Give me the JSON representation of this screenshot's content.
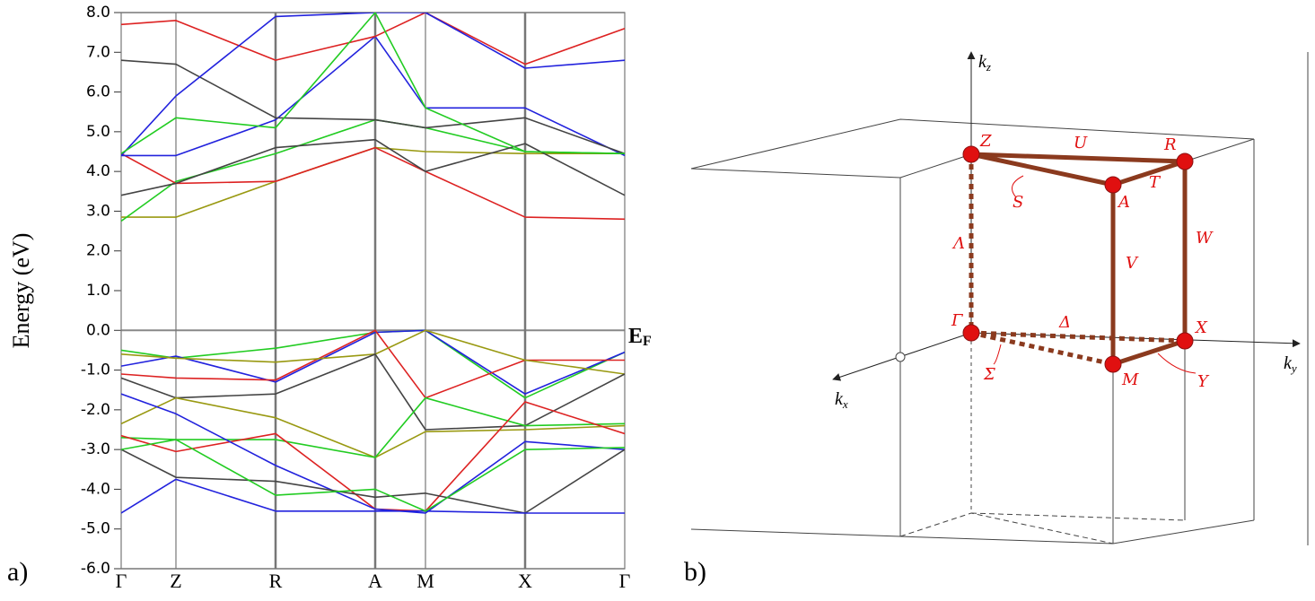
{
  "chart_data": {
    "type": "line",
    "ylabel": "Energy (eV)",
    "categories": [
      "Γ",
      "Z",
      "R",
      "A",
      "M",
      "X",
      "Γ"
    ],
    "ylim": [
      -6,
      8
    ],
    "yticks": [
      {
        "value": -6,
        "label": "-6.0"
      },
      {
        "value": -5,
        "label": "-5.0"
      },
      {
        "value": -4,
        "label": "-4.0"
      },
      {
        "value": -3,
        "label": "-3.0"
      },
      {
        "value": -2,
        "label": "-2.0"
      },
      {
        "value": -1,
        "label": "-1.0"
      },
      {
        "value": 0,
        "label": "0.0"
      },
      {
        "value": 1,
        "label": "1.0"
      },
      {
        "value": 2,
        "label": "2.0"
      },
      {
        "value": 3,
        "label": "3.0"
      },
      {
        "value": 4,
        "label": "4.0"
      },
      {
        "value": 5,
        "label": "5.0"
      },
      {
        "value": 6,
        "label": "6.0"
      },
      {
        "value": 7,
        "label": "7.0"
      },
      {
        "value": 8,
        "label": "8.0"
      }
    ],
    "annotation": {
      "text": "E",
      "subscript": "F"
    },
    "series": [
      {
        "color": "#22cc22",
        "values": [
          -0.5,
          -0.7,
          -0.45,
          -0.05,
          0.0,
          -1.7,
          -0.55
        ]
      },
      {
        "color": "#2222dd",
        "values": [
          -0.9,
          -0.65,
          -1.3,
          -0.05,
          0.0,
          -1.6,
          -0.55
        ]
      },
      {
        "color": "#dd2222",
        "values": [
          -1.1,
          -1.2,
          -1.25,
          0.0,
          -1.7,
          -0.75,
          -0.75
        ]
      },
      {
        "color": "#999911",
        "values": [
          -0.6,
          -0.7,
          -0.8,
          -0.6,
          0.0,
          -0.75,
          -1.1
        ]
      },
      {
        "color": "#444444",
        "values": [
          -1.2,
          -1.7,
          -1.6,
          -0.6,
          -2.5,
          -2.4,
          -1.1
        ]
      },
      {
        "color": "#999911",
        "values": [
          -2.35,
          -1.7,
          -2.2,
          -3.2,
          -2.55,
          -2.5,
          -2.4
        ]
      },
      {
        "color": "#22cc22",
        "values": [
          -2.7,
          -2.75,
          -2.75,
          -3.2,
          -1.7,
          -2.4,
          -2.35
        ]
      },
      {
        "color": "#dd2222",
        "values": [
          -2.65,
          -3.05,
          -2.6,
          -4.5,
          -4.55,
          -1.8,
          -2.6
        ]
      },
      {
        "color": "#2222dd",
        "values": [
          -1.6,
          -2.1,
          -3.4,
          -4.5,
          -4.6,
          -2.8,
          -3.0
        ]
      },
      {
        "color": "#444444",
        "values": [
          -3.0,
          -3.7,
          -3.8,
          -4.2,
          -4.1,
          -4.6,
          -3.0
        ]
      },
      {
        "color": "#2222dd",
        "values": [
          -4.6,
          -3.75,
          -4.55,
          -4.55,
          -4.55,
          -4.6,
          -4.6
        ]
      },
      {
        "color": "#22cc22",
        "values": [
          -3.0,
          -2.75,
          -4.15,
          -4.0,
          -4.55,
          -3.0,
          -2.95
        ]
      },
      {
        "color": "#999911",
        "values": [
          2.85,
          2.85,
          3.75,
          4.6,
          4.5,
          4.45,
          4.45
        ]
      },
      {
        "color": "#22cc22",
        "values": [
          2.75,
          3.75,
          4.45,
          5.3,
          5.1,
          4.5,
          4.45
        ]
      },
      {
        "color": "#dd2222",
        "values": [
          4.45,
          3.7,
          3.75,
          4.6,
          4.0,
          2.85,
          2.8
        ]
      },
      {
        "color": "#444444",
        "values": [
          3.4,
          3.7,
          4.6,
          4.8,
          4.0,
          4.7,
          3.4
        ]
      },
      {
        "color": "#2222dd",
        "values": [
          4.4,
          4.4,
          5.3,
          7.4,
          5.6,
          5.6,
          4.4
        ]
      },
      {
        "color": "#444444",
        "values": [
          6.8,
          6.7,
          5.35,
          5.3,
          5.1,
          5.35,
          4.45
        ]
      },
      {
        "color": "#dd2222",
        "values": [
          7.7,
          7.8,
          6.8,
          7.4,
          8.0,
          6.7,
          7.6
        ]
      },
      {
        "color": "#2222dd",
        "values": [
          4.4,
          5.9,
          7.9,
          8.0,
          8.0,
          6.6,
          6.8
        ]
      },
      {
        "color": "#22cc22",
        "values": [
          4.45,
          5.35,
          5.1,
          8.0,
          5.6,
          4.5,
          4.45
        ]
      }
    ]
  },
  "panel_labels": [
    "a)",
    "b)"
  ],
  "diagram": {
    "points": [
      "Z",
      "R",
      "A",
      "Γ",
      "X",
      "M"
    ],
    "paths": [
      "U",
      "S",
      "T",
      "W",
      "Λ",
      "V",
      "Δ",
      "Σ",
      "Y"
    ],
    "axes": [
      {
        "text": "k",
        "subscript": "z"
      },
      {
        "text": "k",
        "subscript": "y"
      },
      {
        "text": "k",
        "subscript": "x"
      }
    ]
  }
}
